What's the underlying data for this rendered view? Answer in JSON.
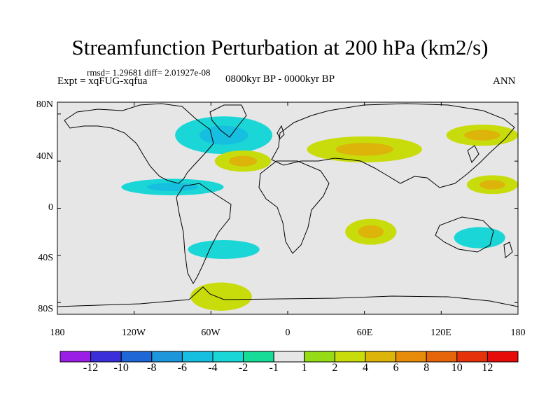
{
  "title": "Streamfunction Perturbation at 200 hPa (km2/s)",
  "stats": "rmsd= 1.29681 diff= 2.01927e-08",
  "experiment": "Expt = xqFUG-xqfua",
  "period": "0800kyr BP - 0000kyr BP",
  "season": "ANN",
  "lat_ticks": [
    "80N",
    "40N",
    "0",
    "40S",
    "80S"
  ],
  "lon_ticks": [
    "180",
    "120W",
    "60W",
    "0",
    "60E",
    "120E",
    "180"
  ],
  "colorbar": {
    "labels": [
      "-12",
      "-10",
      "-8",
      "-6",
      "-4",
      "-2",
      "-1",
      "1",
      "2",
      "4",
      "6",
      "8",
      "10",
      "12"
    ],
    "colors": [
      "#9b1ee6",
      "#3a2fd9",
      "#1f66d6",
      "#1e96dc",
      "#16bee0",
      "#1ad6d6",
      "#16dc98",
      "#e6e6e6",
      "#96dc16",
      "#c8dc0c",
      "#dcb40a",
      "#e68c0a",
      "#e6640a",
      "#e6320a",
      "#e60c0a"
    ]
  },
  "anomalies": [
    {
      "name": "north-atlantic-low",
      "lon": -50,
      "lat": 62,
      "rlon": 38,
      "rlat": 16,
      "level": "-2",
      "core": "-4"
    },
    {
      "name": "central-atlantic-high",
      "lon": -35,
      "lat": 40,
      "rlon": 22,
      "rlat": 9,
      "level": "2",
      "core": "4"
    },
    {
      "name": "eurasia-high",
      "lon": 60,
      "lat": 50,
      "rlon": 45,
      "rlat": 11,
      "level": "2",
      "core": "4"
    },
    {
      "name": "indian-ocean-high",
      "lon": 65,
      "lat": -20,
      "rlon": 20,
      "rlat": 11,
      "level": "2",
      "core": "4"
    },
    {
      "name": "southern-ocean-high",
      "lon": -52,
      "lat": -75,
      "rlon": 24,
      "rlat": 12,
      "level": "2",
      "core": "2"
    },
    {
      "name": "north-pacific-high",
      "lon": 152,
      "lat": 62,
      "rlon": 28,
      "rlat": 9,
      "level": "2",
      "core": "4"
    },
    {
      "name": "pacific-subtropical-high",
      "lon": 160,
      "lat": 20,
      "rlon": 20,
      "rlat": 8,
      "level": "2",
      "core": "4"
    },
    {
      "name": "gulf-low",
      "lon": -90,
      "lat": 18,
      "rlon": 40,
      "rlat": 7,
      "level": "-2",
      "core": "-4"
    },
    {
      "name": "south-pacific-low",
      "lon": 150,
      "lat": -25,
      "rlon": 20,
      "rlat": 9,
      "level": "-2",
      "core": "-2"
    },
    {
      "name": "south-atlantic-low",
      "lon": -50,
      "lat": -35,
      "rlon": 28,
      "rlat": 8,
      "level": "-2",
      "core": "-2"
    }
  ]
}
